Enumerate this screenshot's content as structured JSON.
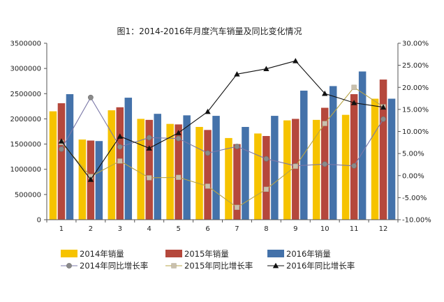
{
  "chart_data": {
    "type": "bar",
    "title": "图1：2014-2016年月度汽车销量及同比变化情况",
    "categories": [
      "1",
      "2",
      "3",
      "4",
      "5",
      "6",
      "7",
      "8",
      "9",
      "10",
      "11",
      "12"
    ],
    "series": [
      {
        "name": "2014年销量",
        "kind": "bar",
        "axis": "left",
        "color": "#f6c300",
        "values": [
          2150000,
          1590000,
          2170000,
          2000000,
          1900000,
          1840000,
          1620000,
          1710000,
          1970000,
          1980000,
          2080000,
          2400000
        ]
      },
      {
        "name": "2015年销量",
        "kind": "bar",
        "axis": "left",
        "color": "#b5483c",
        "values": [
          2310000,
          1570000,
          2230000,
          1980000,
          1890000,
          1780000,
          1500000,
          1660000,
          2000000,
          2220000,
          2490000,
          2780000
        ]
      },
      {
        "name": "2016年销量",
        "kind": "bar",
        "axis": "left",
        "color": "#4472aa",
        "values": [
          2490000,
          1560000,
          2420000,
          2100000,
          2070000,
          2060000,
          1840000,
          2060000,
          2560000,
          2650000,
          2940000,
          2400000
        ]
      },
      {
        "name": "2014年同比增长率",
        "kind": "line",
        "axis": "right",
        "color": "#7b78a8",
        "marker": "circle",
        "values": [
          6.0,
          17.7,
          6.5,
          8.6,
          8.4,
          5.1,
          6.6,
          3.8,
          2.2,
          2.6,
          2.2,
          12.8
        ]
      },
      {
        "name": "2015年同比增长率",
        "kind": "line",
        "axis": "right",
        "color": "#b8a448",
        "marker": "square",
        "values": [
          7.5,
          -0.2,
          3.3,
          -0.5,
          -0.4,
          -2.4,
          -7.2,
          -3.1,
          2.1,
          11.8,
          20.0,
          15.6
        ]
      },
      {
        "name": "2016年同比增长率",
        "kind": "line",
        "axis": "right",
        "color": "#111111",
        "marker": "triangle",
        "values": [
          7.8,
          -0.9,
          8.9,
          6.2,
          9.7,
          14.5,
          23.0,
          24.2,
          26.0,
          18.6,
          16.5,
          15.5
        ]
      }
    ],
    "y_left": {
      "min": 0,
      "max": 3500000,
      "step": 500000,
      "tick_labels": [
        "0",
        "500000",
        "1000000",
        "1500000",
        "2000000",
        "2500000",
        "3000000",
        "3500000"
      ]
    },
    "y_right": {
      "min": -10,
      "max": 30,
      "step": 5,
      "tick_labels": [
        "-10.00%",
        "-5.00%",
        "0.00%",
        "5.00%",
        "10.00%",
        "15.00%",
        "20.00%",
        "25.00%",
        "30.00%"
      ]
    },
    "grid": false,
    "legend_position": "bottom"
  }
}
